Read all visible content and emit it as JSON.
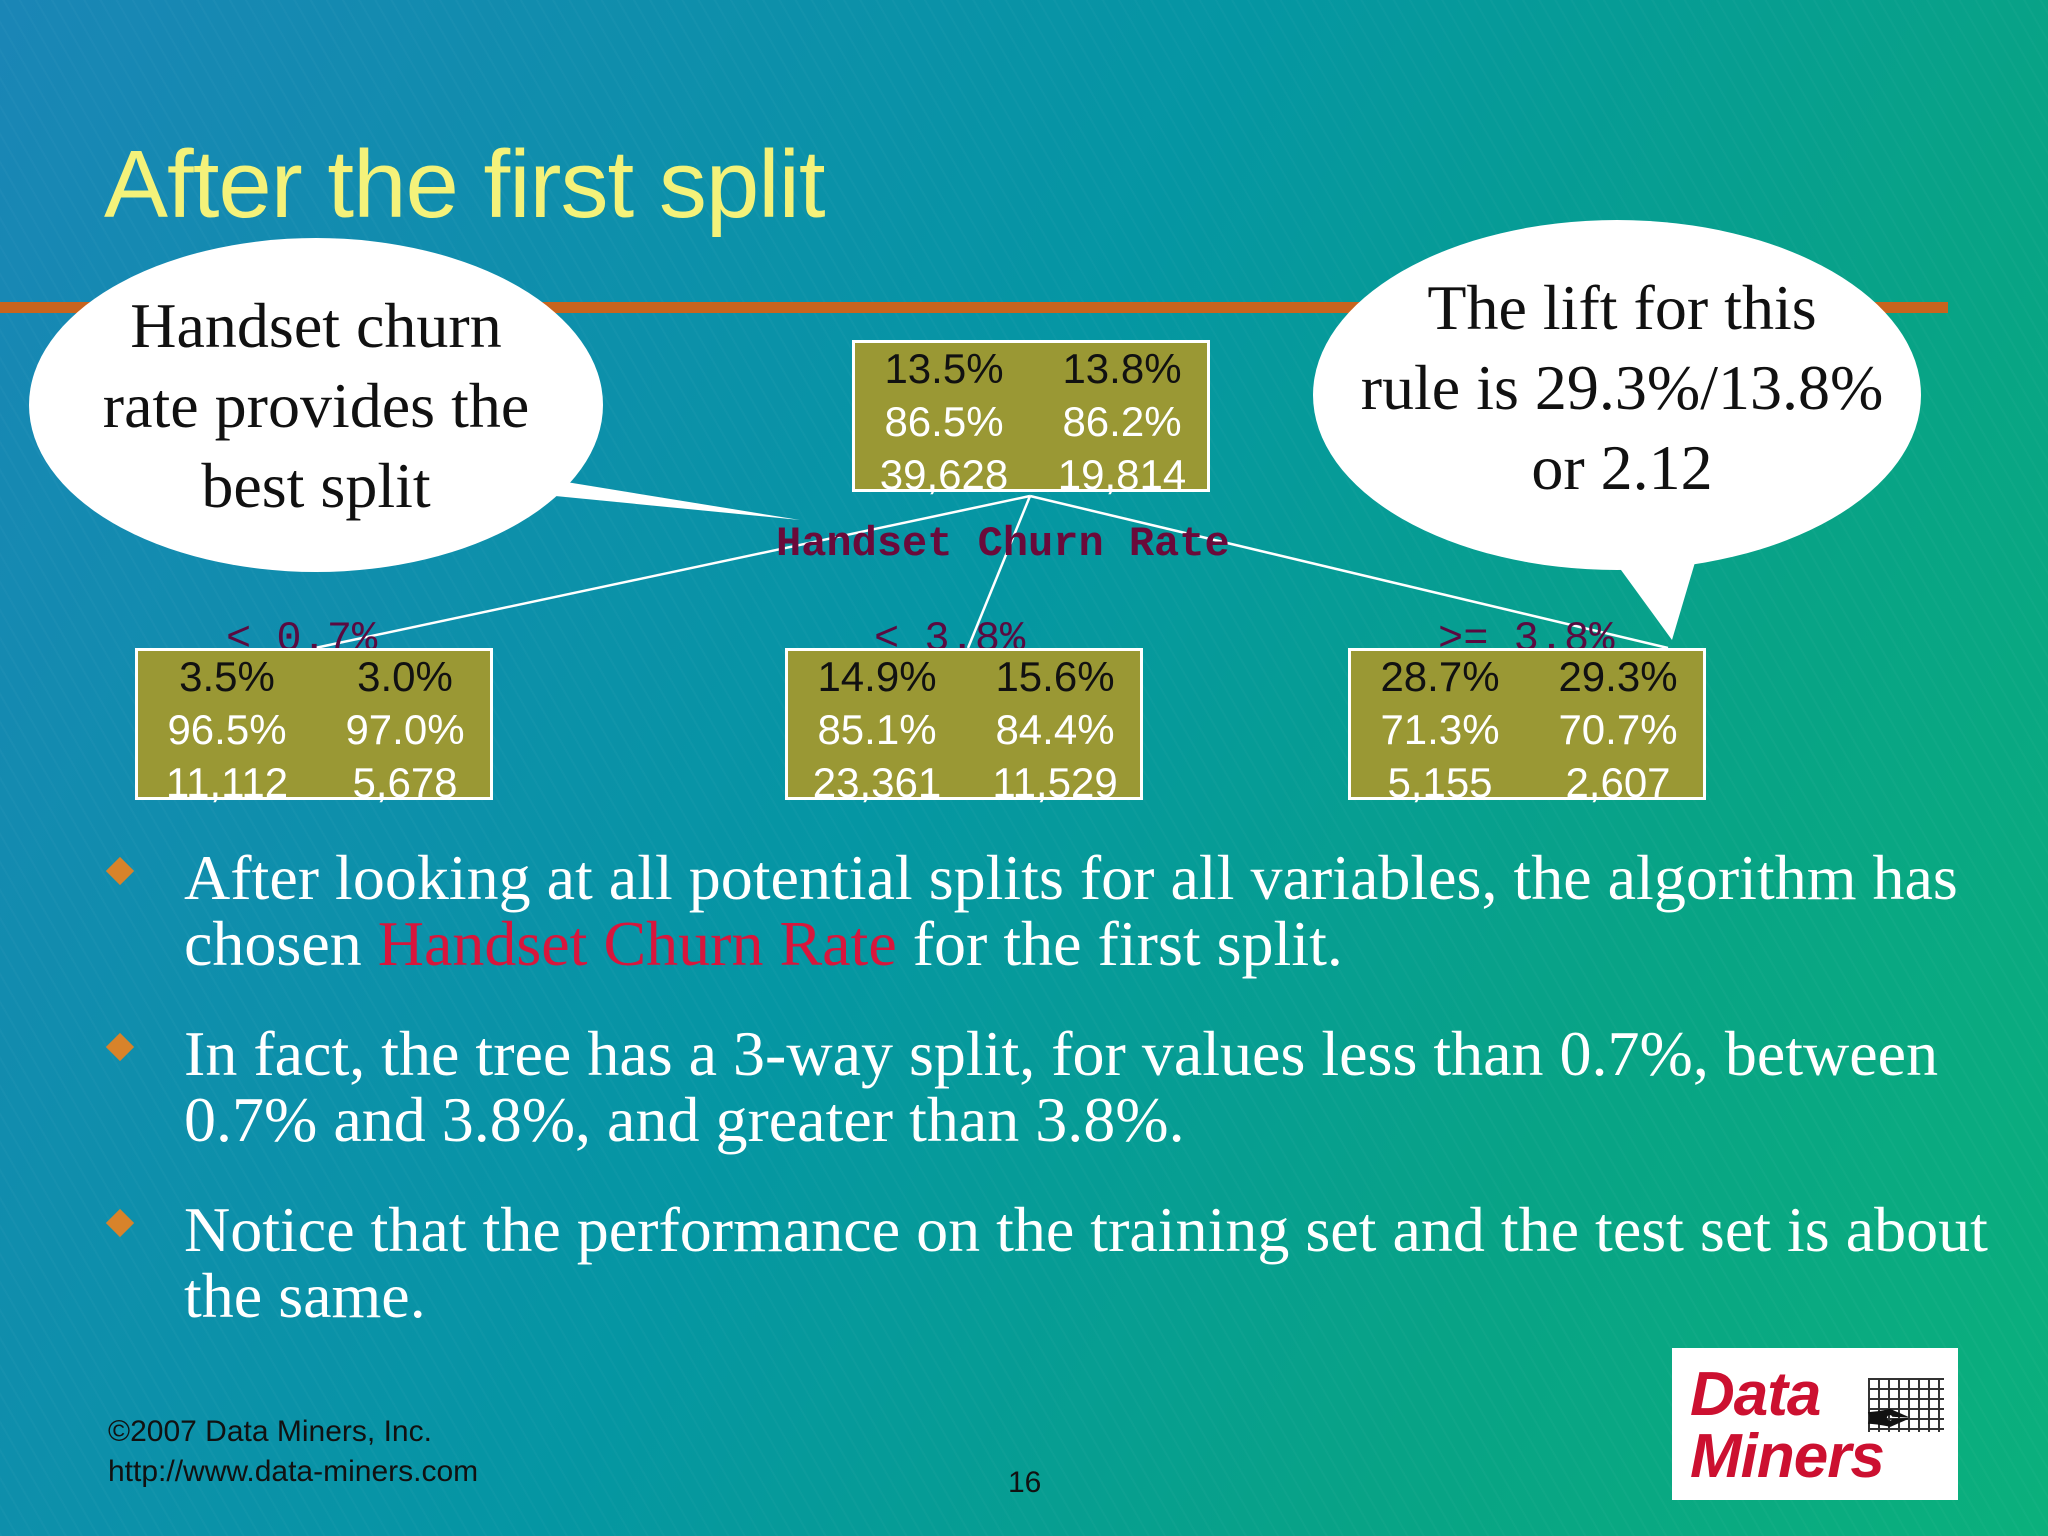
{
  "slide": {
    "title": "After the first split",
    "page_number": "16"
  },
  "tree": {
    "split_variable": "Handset Churn Rate",
    "root": {
      "rows": [
        [
          "13.5%",
          "13.8%"
        ],
        [
          "86.5%",
          "86.2%"
        ],
        [
          "39,628",
          "19,814"
        ]
      ]
    },
    "children": [
      {
        "branch_label": "< 0.7%",
        "rows": [
          [
            "3.5%",
            "3.0%"
          ],
          [
            "96.5%",
            "97.0%"
          ],
          [
            "11,112",
            "5,678"
          ]
        ]
      },
      {
        "branch_label": "< 3.8%",
        "rows": [
          [
            "14.9%",
            "15.6%"
          ],
          [
            "85.1%",
            "84.4%"
          ],
          [
            "23,361",
            "11,529"
          ]
        ]
      },
      {
        "branch_label": ">= 3.8%",
        "rows": [
          [
            "28.7%",
            "29.3%"
          ],
          [
            "71.3%",
            "70.7%"
          ],
          [
            "5,155",
            "2,607"
          ]
        ]
      }
    ]
  },
  "callouts": {
    "left": {
      "lines": [
        "Handset churn",
        "rate provides the",
        "best split"
      ]
    },
    "right": {
      "lines": [
        "The lift for this",
        "rule is 29.3%/13.8%",
        "or 2.12"
      ]
    }
  },
  "bullets": [
    {
      "before": "After looking at all potential splits for all variables, the algorithm has chosen ",
      "highlight": "Handset Churn Rate",
      "after": " for the first split."
    },
    {
      "text": "In fact, the tree has a 3-way split, for values less than 0.7%, between 0.7% and 3.8%, and greater than 3.8%."
    },
    {
      "text": "Notice that the performance on the training set and the test set is about the same."
    }
  ],
  "footer": {
    "copyright": "©2007 Data Miners, Inc.",
    "url": "http://www.data-miners.com"
  },
  "logo": {
    "line1": "Data",
    "line2": "Miners"
  },
  "colors": {
    "title": "#f4f27a",
    "rule_bar": "#c8641e",
    "node_fill": "#9a9834",
    "split_label": "#6a0a3a",
    "highlight": "#d8163c",
    "bullet_marker": "#d8832a",
    "logo_red": "#cc1030"
  }
}
